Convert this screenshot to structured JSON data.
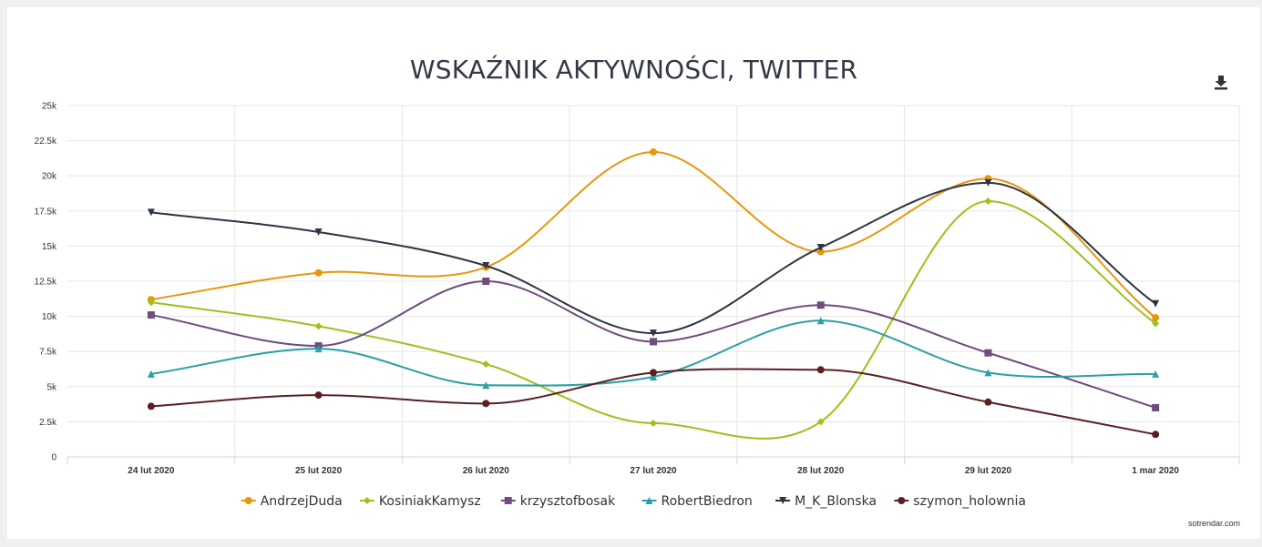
{
  "chart_data": {
    "type": "line",
    "title": "WSKAŹNIK AKTYWNOŚCI, TWITTER",
    "categories": [
      "24 lut 2020",
      "25 lut 2020",
      "26 lut 2020",
      "27 lut 2020",
      "28 lut 2020",
      "29 lut 2020",
      "1 mar 2020"
    ],
    "y_ticks": [
      "0",
      "2.5k",
      "5k",
      "7.5k",
      "10k",
      "12.5k",
      "15k",
      "17.5k",
      "20k",
      "22.5k",
      "25k"
    ],
    "ylim": [
      0,
      25000
    ],
    "grid": true,
    "legend_position": "bottom",
    "series": [
      {
        "name": "AndrzejDuda",
        "color": "#e8960c",
        "marker": "circle",
        "values": [
          11200,
          13100,
          13500,
          21700,
          14600,
          19800,
          9900
        ]
      },
      {
        "name": "KosiniakKamysz",
        "color": "#9ac21b",
        "marker": "diamond",
        "values": [
          11000,
          9300,
          6600,
          2400,
          2500,
          18200,
          9500
        ]
      },
      {
        "name": "krzysztofbosak",
        "color": "#6e4c7e",
        "marker": "square",
        "values": [
          10100,
          7900,
          12500,
          8200,
          10800,
          7400,
          3500
        ]
      },
      {
        "name": "RobertBiedron",
        "color": "#2a9fa5",
        "marker": "triangle",
        "values": [
          5900,
          7700,
          5100,
          5700,
          9700,
          6000,
          5900
        ]
      },
      {
        "name": "M_K_Blonska",
        "color": "#2b3543",
        "marker": "triangle-down",
        "values": [
          17400,
          16000,
          13600,
          8800,
          14900,
          19500,
          10900
        ]
      },
      {
        "name": "szymon_holownia",
        "color": "#5a1f22",
        "marker": "circle",
        "values": [
          3600,
          4400,
          3800,
          6000,
          6200,
          3900,
          1600
        ]
      }
    ]
  },
  "credits": "sotrendar.com",
  "icons": {
    "export": "download-icon"
  }
}
